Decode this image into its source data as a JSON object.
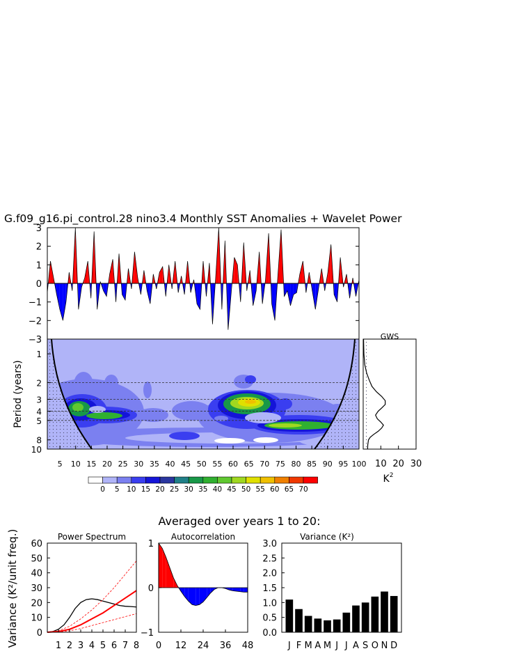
{
  "main_title": "G.f09_g16.pi_control.28 nino3.4 Monthly SST Anomalies + Wavelet Power",
  "averaged_title": "Averaged over years 1 to 20:",
  "colors": {
    "positive": "#ff0000",
    "negative": "#0000ff",
    "wavelet_background": "#b0b4f8"
  },
  "chart_data": [
    {
      "id": "sst_timeseries",
      "type": "area",
      "title": "G.f09_g16.pi_control.28 nino3.4 Monthly SST Anomalies + Wavelet Power",
      "xlim": [
        0,
        100
      ],
      "ylim": [
        -3,
        3
      ],
      "yticks": [
        -3,
        -2,
        -1,
        0,
        1,
        2,
        3
      ],
      "ytick_labels": [
        "−3",
        "−2",
        "−1",
        "0",
        "1",
        "2",
        "3"
      ],
      "x": [
        0,
        1,
        2,
        3,
        4,
        5,
        6,
        7,
        8,
        9,
        10,
        11,
        12,
        13,
        14,
        15,
        16,
        17,
        18,
        19,
        20,
        21,
        22,
        23,
        24,
        25,
        26,
        27,
        28,
        29,
        30,
        31,
        32,
        33,
        34,
        35,
        36,
        37,
        38,
        39,
        40,
        41,
        42,
        43,
        44,
        45,
        46,
        47,
        48,
        49,
        50,
        51,
        52,
        53,
        54,
        55,
        56,
        57,
        58,
        59,
        60,
        61,
        62,
        63,
        64,
        65,
        66,
        67,
        68,
        69,
        70,
        71,
        72,
        73,
        74,
        75,
        76,
        77,
        78,
        79,
        80,
        81,
        82,
        83,
        84,
        85,
        86,
        87,
        88,
        89,
        90,
        91,
        92,
        93,
        94,
        95,
        96,
        97,
        98,
        99,
        100
      ],
      "values": [
        -0.5,
        1.2,
        0.3,
        -0.6,
        -1.4,
        -2.0,
        -1.0,
        0.6,
        -0.4,
        3.0,
        -1.4,
        -0.2,
        0.3,
        1.2,
        -0.8,
        2.8,
        -1.4,
        0.1,
        -0.4,
        -0.7,
        0.5,
        1.3,
        -1.0,
        1.6,
        -0.6,
        -0.9,
        0.8,
        -0.3,
        1.7,
        0.3,
        -0.6,
        0.7,
        -0.4,
        -1.1,
        0.5,
        -0.3,
        0.6,
        0.9,
        -0.7,
        1.0,
        -0.3,
        1.2,
        -0.5,
        0.4,
        -0.6,
        1.2,
        -0.5,
        0.2,
        -1.1,
        -1.4,
        1.2,
        -0.7,
        1.1,
        -2.2,
        0.3,
        3.0,
        -1.4,
        2.3,
        -2.5,
        -0.5,
        1.4,
        1.0,
        -1.0,
        2.2,
        -0.4,
        0.7,
        -1.2,
        -0.4,
        1.7,
        -1.1,
        0.2,
        2.7,
        -1.1,
        -2.0,
        0.5,
        2.9,
        -0.7,
        -0.4,
        -1.2,
        -0.6,
        -0.5,
        0.5,
        1.2,
        -0.5,
        0.6,
        -0.4,
        -1.4,
        -0.3,
        0.8,
        -0.4,
        0.6,
        2.1,
        -0.6,
        -1.0,
        1.4,
        -0.2,
        0.5,
        -0.8,
        0.3,
        -0.7,
        0.2
      ]
    },
    {
      "id": "wavelet_power",
      "type": "heatmap",
      "ylabel": "Period (years)",
      "xlim": [
        1,
        100
      ],
      "ylim_period": [
        0.7,
        10
      ],
      "xticks": [
        5,
        10,
        15,
        20,
        25,
        30,
        35,
        40,
        45,
        50,
        55,
        60,
        65,
        70,
        75,
        80,
        85,
        90,
        95,
        100
      ],
      "yticks": [
        1,
        2,
        3,
        4,
        5,
        8,
        10
      ],
      "dashed_periods": [
        2,
        3,
        4,
        5
      ],
      "colorbar_labels": [
        "0",
        "5",
        "10",
        "15",
        "20",
        "25",
        "30",
        "35",
        "40",
        "45",
        "50",
        "55",
        "60",
        "65",
        "70"
      ],
      "colorbar_colors": [
        "#ffffff",
        "#b0b4f8",
        "#7b80f0",
        "#3a3ef0",
        "#1414d8",
        "#2a36a0",
        "#208088",
        "#189848",
        "#30b030",
        "#60c830",
        "#a0d820",
        "#e0e000",
        "#f0c000",
        "#f08000",
        "#f03800",
        "#ff0000"
      ],
      "hotspots": [
        {
          "x": 13,
          "period": 3.2,
          "power": 45
        },
        {
          "x": 22,
          "period": 3.9,
          "power": 40
        },
        {
          "x": 66,
          "period": 2.9,
          "power": 55
        },
        {
          "x": 80,
          "period": 4.8,
          "power": 45
        }
      ]
    },
    {
      "id": "gws",
      "type": "line",
      "title": "GWS",
      "xlabel": "K",
      "xlabel_sup": "2",
      "xlim": [
        0,
        30
      ],
      "xticks": [
        10,
        20,
        30
      ],
      "period": [
        0.7,
        1,
        1.3,
        1.6,
        1.9,
        2.2,
        2.5,
        2.8,
        3.1,
        3.4,
        3.7,
        4.0,
        4.4,
        4.8,
        5.2,
        5.6,
        6.0,
        6.5,
        7.0,
        7.5,
        8,
        9,
        10
      ],
      "values": [
        0.2,
        0.4,
        0.9,
        2.0,
        3.5,
        5.0,
        7.5,
        10.5,
        12.5,
        12.5,
        10.5,
        8.5,
        7.0,
        8.0,
        10.0,
        11.5,
        10.5,
        8.5,
        6.0,
        4.0,
        3.0,
        2.6,
        2.5
      ]
    },
    {
      "id": "power_spectrum",
      "type": "line",
      "title": "Power Spectrum",
      "ylabel": "Variance (K²/unit freq.)",
      "xlim": [
        0,
        8
      ],
      "ylim": [
        0,
        60
      ],
      "xticks": [
        1,
        2,
        3,
        4,
        5,
        6,
        7,
        8
      ],
      "yticks": [
        0,
        10,
        20,
        30,
        40,
        50,
        60
      ],
      "series": [
        {
          "x": [
            0,
            0.5,
            1,
            1.5,
            2,
            2.5,
            3,
            3.5,
            4,
            4.5,
            5,
            5.5,
            6,
            6.5,
            7,
            7.5,
            8
          ],
          "values": [
            0,
            0.5,
            2,
            5,
            10,
            16,
            20,
            22,
            22.5,
            22,
            21,
            20,
            19,
            18,
            17.5,
            17.3,
            17
          ]
        },
        {
          "x": [
            0,
            1,
            2,
            3,
            4,
            5,
            6,
            7,
            8
          ],
          "values": [
            0,
            0.5,
            2,
            5,
            9,
            13,
            18,
            23,
            28
          ]
        },
        {
          "x": [
            0,
            1,
            2,
            3,
            4,
            5,
            6,
            7,
            8
          ],
          "values": [
            0,
            1,
            4,
            9,
            15,
            22,
            30,
            39,
            48
          ]
        },
        {
          "x": [
            0,
            1,
            2,
            3,
            4,
            5,
            6,
            7,
            8
          ],
          "values": [
            0,
            0.2,
            1,
            2.5,
            4.5,
            6.5,
            8.5,
            10.5,
            12.5
          ]
        }
      ]
    },
    {
      "id": "autocorrelation",
      "type": "area",
      "title": "Autocorrelation",
      "xlim": [
        0,
        48
      ],
      "ylim": [
        -1,
        1
      ],
      "xticks": [
        0,
        12,
        24,
        36,
        48
      ],
      "yticks": [
        -1,
        0,
        1
      ],
      "ytick_labels": [
        "−1",
        "0",
        "1"
      ],
      "x": [
        0,
        2,
        4,
        6,
        8,
        10,
        12,
        14,
        16,
        18,
        20,
        22,
        24,
        26,
        28,
        30,
        32,
        34,
        36,
        38,
        40,
        42,
        44,
        46,
        48
      ],
      "values": [
        1.0,
        0.88,
        0.68,
        0.45,
        0.22,
        0.05,
        -0.08,
        -0.2,
        -0.3,
        -0.38,
        -0.4,
        -0.38,
        -0.32,
        -0.22,
        -0.12,
        -0.04,
        0.0,
        0.0,
        -0.02,
        -0.05,
        -0.07,
        -0.08,
        -0.09,
        -0.1,
        -0.1
      ]
    },
    {
      "id": "monthly_variance",
      "type": "bar",
      "title": "Variance (K²)",
      "categories": [
        "J",
        "F",
        "M",
        "A",
        "M",
        "J",
        "J",
        "A",
        "S",
        "O",
        "N",
        "D"
      ],
      "values": [
        1.1,
        0.78,
        0.55,
        0.46,
        0.4,
        0.43,
        0.66,
        0.9,
        1.0,
        1.2,
        1.37,
        1.22
      ],
      "ylim": [
        0,
        3
      ],
      "yticks": [
        "0.0",
        "0.5",
        "1.0",
        "1.5",
        "2.0",
        "2.5",
        "3.0"
      ]
    }
  ]
}
